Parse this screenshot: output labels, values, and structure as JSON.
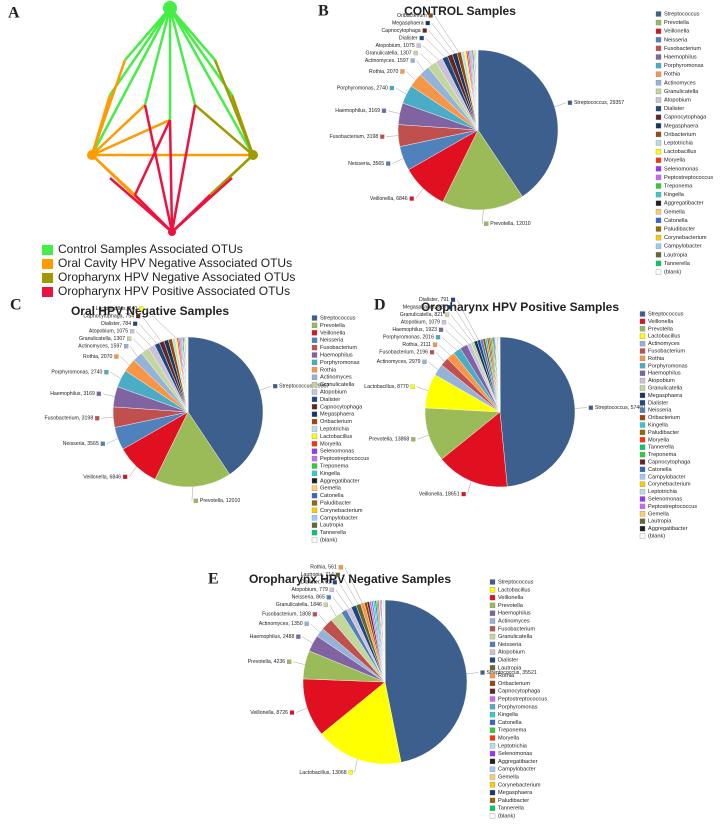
{
  "network": {
    "panel": "A",
    "legend": [
      {
        "label": "Control Samples Associated OTUs",
        "color": "#44ee44"
      },
      {
        "label": "Oral Cavity HPV Negative Associated OTUs",
        "color": "#ff9a00"
      },
      {
        "label": "Oropharynx HPV Negative Associated OTUs",
        "color": "#a09a00"
      },
      {
        "label": "Oropharynx HPV Positive Associated OTUs",
        "color": "#ee1140"
      }
    ]
  },
  "chart_data": [
    {
      "type": "pie",
      "panel": "B",
      "title": "CONTROL Samples",
      "categories": [
        "Streptococcus",
        "Prevotella",
        "Veillonella",
        "Neisseria",
        "Fusobacterium",
        "Haemophilus",
        "Porphyromonas",
        "Rothia",
        "Actinomyces",
        "Granulicatella",
        "Atopobium",
        "Dialister",
        "Capnocytophaga",
        "Megasphaera",
        "Oribacterium",
        "Leptotrichia",
        "Lactobacillus",
        "Moryella",
        "Selenomonas",
        "Peptostreptococcus",
        "Treponema",
        "Kingella",
        "Aggregatibacter",
        "Gemella",
        "Catonella",
        "Paludibacter",
        "Corynebacterium",
        "Campylobacter",
        "Lautropia",
        "Tannerella",
        "(blank)"
      ],
      "values": [
        29357,
        12010,
        6846,
        3565,
        3198,
        3169,
        2740,
        2070,
        1597,
        1307,
        1075,
        800,
        750,
        700,
        600,
        500,
        240,
        220,
        200,
        180,
        160,
        150,
        140,
        120,
        110,
        100,
        90,
        80,
        70,
        60,
        50
      ],
      "value_labels": [
        "Streptococcus, 29357",
        "Prevotella, 12010",
        "Veillonella, 6846",
        "Neisseria, 3565",
        "Fusobacterium, 3198",
        "Haemophilus, 3169",
        "Porphyromonas, 2740",
        "Rothia, 2070",
        "Actinomyces, 1597",
        "Granulicatella, 1307",
        "Atopobium, 1075",
        "Dialister",
        "Capnocytophaga",
        "Megasphaera",
        "Oribacterium",
        null,
        null,
        null,
        null,
        null,
        null,
        null,
        null,
        null,
        null,
        null,
        null,
        null,
        null,
        null,
        null
      ],
      "colors": [
        "#3d5f8e",
        "#9bbb59",
        "#e01020",
        "#4f81bd",
        "#c0504d",
        "#8064a2",
        "#4bacc6",
        "#f79646",
        "#95b3d7",
        "#c3d69b",
        "#ccc1da",
        "#1f497d",
        "#632523",
        "#17375e",
        "#984807",
        "#b7dee8",
        "#ffff00",
        "#ff3300",
        "#9933ff",
        "#cc66ff",
        "#33cc33",
        "#33cccc",
        "#1f1f1f",
        "#ffcc66",
        "#3366cc",
        "#996600",
        "#ffcc00",
        "#99ccff",
        "#666633",
        "#00cc66",
        "#ffffff"
      ]
    },
    {
      "type": "pie",
      "panel": "C",
      "title": "Oral HPV Negative Samples",
      "categories": [
        "Streptococcus",
        "Prevotella",
        "Veillonella",
        "Neisseria",
        "Fusobacterium",
        "Haemophilus",
        "Porphyromonas",
        "Rothia",
        "Actinomyces",
        "Granulicatella",
        "Atopobium",
        "Dialister",
        "Capnocytophaga",
        "Megasphaera",
        "Oribacterium",
        "Leptotrichia",
        "Lactobacillus",
        "Moryella",
        "Selenomonas",
        "Peptostreptococcus",
        "Treponema",
        "Kingella",
        "Aggregatibacter",
        "Gemella",
        "Catonella",
        "Paludibacter",
        "Corynebacterium",
        "Campylobacter",
        "Lautropia",
        "Tannerella",
        "(blank)"
      ],
      "values": [
        29357,
        12010,
        6846,
        3565,
        3198,
        3169,
        2740,
        2070,
        1597,
        1307,
        1075,
        784,
        754,
        700,
        600,
        500,
        240,
        220,
        200,
        180,
        160,
        150,
        140,
        120,
        110,
        100,
        90,
        80,
        70,
        60,
        50
      ],
      "value_labels": [
        "Streptococcus, 29357",
        "Prevotella, 12010",
        "Veillonella, 6846",
        "Neisseria, 3565",
        "Fusobacterium, 3198",
        "Haemophilus, 3169",
        "Porphyromonas, 2740",
        "Rothia, 2070",
        "Actinomyces, 1597",
        "Granulicatella, 1307",
        "Atopobium, 1075",
        "Dialister, 784",
        "Capnocytophaga, 754",
        null,
        null,
        null,
        "Lactobacillus, 240",
        null,
        null,
        null,
        null,
        null,
        null,
        null,
        null,
        null,
        null,
        null,
        null,
        null,
        null
      ],
      "colors": [
        "#3d5f8e",
        "#9bbb59",
        "#e01020",
        "#4f81bd",
        "#c0504d",
        "#8064a2",
        "#4bacc6",
        "#f79646",
        "#95b3d7",
        "#c3d69b",
        "#ccc1da",
        "#1f497d",
        "#632523",
        "#17375e",
        "#984807",
        "#b7dee8",
        "#ffff00",
        "#ff3300",
        "#9933ff",
        "#cc66ff",
        "#33cc33",
        "#33cccc",
        "#1f1f1f",
        "#ffcc66",
        "#3366cc",
        "#996600",
        "#ffcc00",
        "#99ccff",
        "#666633",
        "#00cc66",
        "#ffffff"
      ]
    },
    {
      "type": "pie",
      "panel": "D",
      "title": "Oropharynx HPV Positive Samples",
      "categories": [
        "Streptococcus",
        "Veillonella",
        "Prevotella",
        "Lactobacillus",
        "Actinomyces",
        "Fusobacterium",
        "Rothia",
        "Porphyromonas",
        "Haemophilus",
        "Atopobium",
        "Granulicatella",
        "Megasphaera",
        "Dialister",
        "Neisseria",
        "Oribacterium",
        "Kingella",
        "Paludibacter",
        "Moryella",
        "Tannerella",
        "Treponema",
        "Capnocytophaga",
        "Catonella",
        "Campylobacter",
        "Corynebacterium",
        "Leptotrichia",
        "Selenomonas",
        "Peptostreptococcus",
        "Gemella",
        "Lautropia",
        "Aggregatibacter",
        "(blank)"
      ],
      "values": [
        57460,
        18651,
        13868,
        8770,
        2979,
        2196,
        2111,
        2016,
        1923,
        1079,
        821,
        828,
        791,
        700,
        600,
        500,
        450,
        400,
        350,
        300,
        280,
        250,
        220,
        200,
        180,
        160,
        140,
        120,
        100,
        80,
        60
      ],
      "value_labels": [
        "Streptococcus, 57460",
        "Veillonella, 18651",
        "Prevotella, 13868",
        "Lactobacillus, 8770",
        "Actinomyces, 2979",
        "Fusobacterium, 2196",
        "Rothia, 2111",
        "Porphyromonas, 2016",
        "Haemophilus, 1923",
        "Atopobium, 1079",
        "Granulicatella, 821",
        "Megasphaera, 828",
        "Dialister, 791",
        null,
        null,
        null,
        null,
        null,
        null,
        null,
        null,
        null,
        null,
        null,
        null,
        null,
        null,
        null,
        null,
        null,
        null
      ],
      "colors": [
        "#3d5f8e",
        "#e01020",
        "#9bbb59",
        "#ffff00",
        "#95b3d7",
        "#c0504d",
        "#f79646",
        "#4bacc6",
        "#8064a2",
        "#ccc1da",
        "#c3d69b",
        "#17375e",
        "#1f497d",
        "#4f81bd",
        "#984807",
        "#33cccc",
        "#996600",
        "#ff3300",
        "#00cc66",
        "#33cc33",
        "#632523",
        "#3366cc",
        "#99ccff",
        "#ffcc00",
        "#b7dee8",
        "#9933ff",
        "#cc66ff",
        "#ffcc66",
        "#666633",
        "#1f1f1f",
        "#ffffff"
      ]
    },
    {
      "type": "pie",
      "panel": "E",
      "title": "Oropharynx HPV Negative Samples",
      "categories": [
        "Streptococcus",
        "Lactobacillus",
        "Veillonella",
        "Prevotella",
        "Haemophilus",
        "Actinomyces",
        "Fusobacterium",
        "Granulicatella",
        "Neisseria",
        "Atopobium",
        "Dialister",
        "Lautropia",
        "Rothia",
        "Oribacterium",
        "Capnocytophaga",
        "Peptostreptococcus",
        "Porphyromonas",
        "Kingella",
        "Catonella",
        "Treponema",
        "Moryella",
        "Leptotrichia",
        "Selenomonas",
        "Aggregatibacter",
        "Campylobacter",
        "Gemella",
        "Corynebacterium",
        "Megasphaera",
        "Paludibacter",
        "Tannerella",
        "(blank)"
      ],
      "values": [
        35521,
        13068,
        8726,
        4236,
        2488,
        1350,
        1808,
        1846,
        865,
        779,
        761,
        714,
        561,
        400,
        350,
        300,
        280,
        250,
        220,
        200,
        180,
        160,
        140,
        120,
        100,
        90,
        80,
        70,
        60,
        50,
        40
      ],
      "value_labels": [
        "Streptococcus, 35521",
        "Lactobacillus, 13068",
        "Veillonella, 8726",
        "Prevotella, 4236",
        "Haemophilus, 2488",
        "Actinomyces, 1350",
        "Fusobacterium, 1808",
        "Granulicatella, 1846",
        "Neisseria, 865",
        "Atopobium, 779",
        "Dialister, 761",
        "Lautropia, 714",
        "Rothia, 561",
        null,
        null,
        null,
        null,
        null,
        null,
        null,
        null,
        null,
        null,
        null,
        null,
        null,
        null,
        null,
        null,
        null,
        null
      ],
      "colors": [
        "#3d5f8e",
        "#ffff00",
        "#e01020",
        "#9bbb59",
        "#8064a2",
        "#95b3d7",
        "#c0504d",
        "#c3d69b",
        "#4f81bd",
        "#ccc1da",
        "#1f497d",
        "#666633",
        "#f79646",
        "#984807",
        "#632523",
        "#cc66ff",
        "#4bacc6",
        "#33cccc",
        "#3366cc",
        "#33cc33",
        "#ff3300",
        "#b7dee8",
        "#9933ff",
        "#1f1f1f",
        "#99ccff",
        "#ffcc66",
        "#ffcc00",
        "#17375e",
        "#996600",
        "#00cc66",
        "#ffffff"
      ]
    }
  ]
}
